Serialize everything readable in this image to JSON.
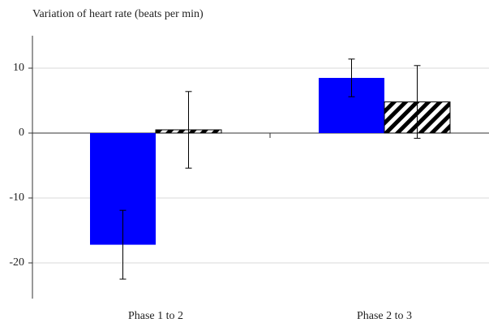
{
  "chart_data": {
    "type": "bar",
    "title": "Variation of heart rate (beats per min)",
    "categories": [
      "Phase 1 to 2",
      "Phase 2 to 3"
    ],
    "series": [
      {
        "color": "#0000ff",
        "hatch": false,
        "values": [
          -17.2,
          8.5
        ],
        "errors": [
          5.3,
          2.9
        ]
      },
      {
        "color": "#000000",
        "hatch": true,
        "values": [
          0.5,
          4.8
        ],
        "errors": [
          5.9,
          5.6
        ]
      }
    ],
    "ylim": [
      -25,
      15
    ],
    "yticks": [
      -20,
      -10,
      0,
      10
    ],
    "grid": true
  }
}
